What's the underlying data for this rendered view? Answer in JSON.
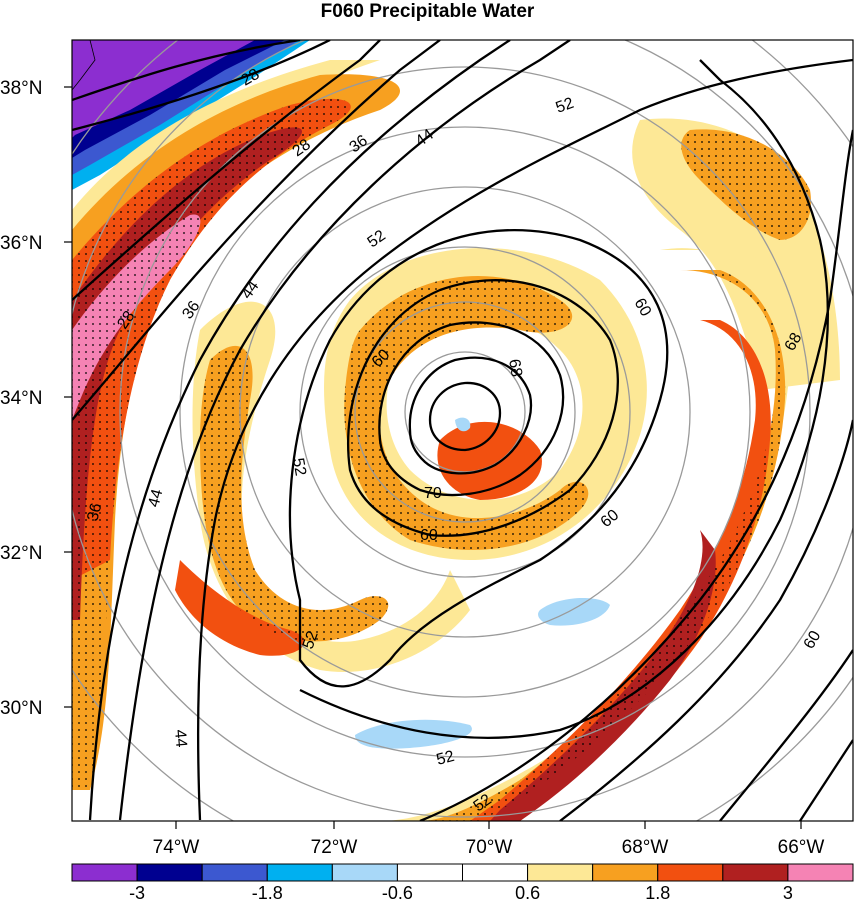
{
  "title": "F060 Precipitable Water",
  "axes": {
    "lat_labels": [
      "38°N",
      "36°N",
      "34°N",
      "32°N",
      "30°N"
    ],
    "lon_labels": [
      "74°W",
      "72°W",
      "70°W",
      "68°W",
      "66°W"
    ]
  },
  "contour_labels": [
    "28",
    "28",
    "28",
    "36",
    "36",
    "36",
    "44",
    "44",
    "44",
    "44",
    "52",
    "52",
    "52",
    "52",
    "52",
    "52",
    "60",
    "60",
    "60",
    "60",
    "60",
    "68",
    "68",
    "70"
  ],
  "colorbar": {
    "colors": [
      "#8c2ed0",
      "#000090",
      "#3c58d0",
      "#00b0f0",
      "#a8d8f8",
      "#ffffff",
      "#ffffff",
      "#fde896",
      "#f7a020",
      "#f25010",
      "#b02020",
      "#f583b4"
    ],
    "labels": [
      "-3",
      "-1.8",
      "-0.6",
      "0.6",
      "1.8",
      "3"
    ]
  }
}
